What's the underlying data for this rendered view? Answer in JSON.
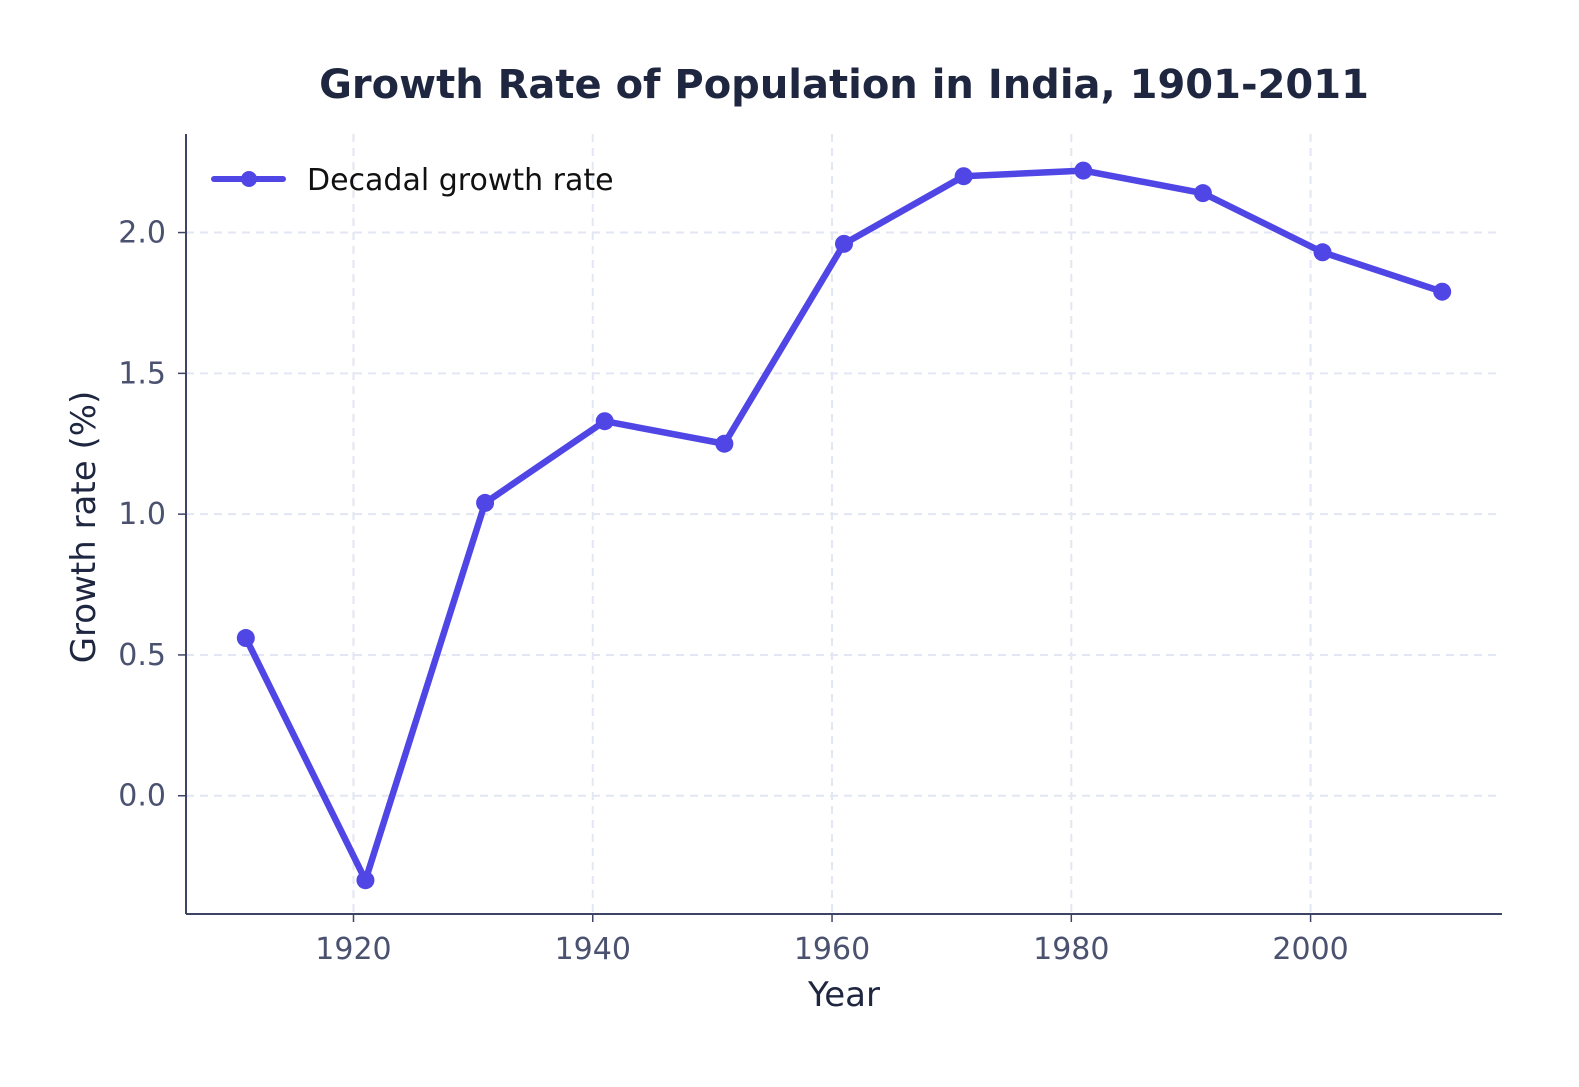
{
  "colors": {
    "series": "#4f46e5",
    "title": "#1e2640",
    "axis_label": "#1e2640",
    "tick_label": "#4a5270",
    "spine": "#3d4466",
    "grid": "#e3e6f3"
  },
  "chart_data": {
    "type": "line",
    "title": "Growth Rate of Population in India, 1901-2011",
    "xlabel": "Year",
    "ylabel": "Growth rate (%)",
    "xlim": [
      1906,
      2016
    ],
    "ylim": [
      -0.42,
      2.35
    ],
    "xticks": [
      1920,
      1940,
      1960,
      1980,
      2000
    ],
    "xtick_labels": [
      "1920",
      "1940",
      "1960",
      "1980",
      "2000"
    ],
    "yticks": [
      0.0,
      0.5,
      1.0,
      1.5,
      2.0
    ],
    "ytick_labels": [
      "0.0",
      "0.5",
      "1.0",
      "1.5",
      "2.0"
    ],
    "grid": true,
    "legend_position": "top-left",
    "series": [
      {
        "name": "Decadal growth rate",
        "x": [
          1911,
          1921,
          1931,
          1941,
          1951,
          1961,
          1971,
          1981,
          1991,
          2001,
          2011
        ],
        "y": [
          0.56,
          -0.3,
          1.04,
          1.33,
          1.25,
          1.96,
          2.2,
          2.22,
          2.14,
          1.93,
          1.79
        ]
      }
    ]
  }
}
